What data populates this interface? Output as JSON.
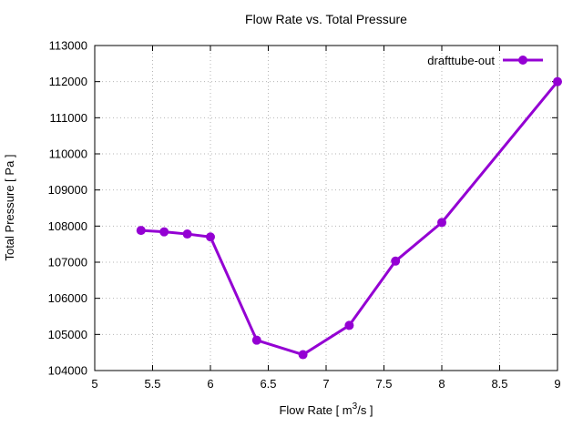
{
  "window": {
    "background": "#ffffff"
  },
  "chart_data": {
    "type": "line",
    "title": "Flow Rate vs. Total Pressure",
    "xlabel": "Flow Rate [ m³/s ]",
    "ylabel": "Total Pressure [ Pa ]",
    "xlim": [
      5,
      9
    ],
    "ylim": [
      104000,
      113000
    ],
    "xticks": [
      5,
      5.5,
      6,
      6.5,
      7,
      7.5,
      8,
      8.5,
      9
    ],
    "yticks": [
      104000,
      105000,
      106000,
      107000,
      108000,
      109000,
      110000,
      111000,
      112000,
      113000
    ],
    "grid": true,
    "legend_position": "top-right-inside",
    "axis_color": "#000000",
    "grid_color": "#b5b5b5",
    "text_color": "#000000",
    "series": [
      {
        "name": "drafttube-out",
        "color": "#9400d3",
        "marker": "circle",
        "x": [
          5.4,
          5.6,
          5.8,
          6.0,
          6.4,
          6.8,
          7.2,
          7.6,
          8.0,
          9.0
        ],
        "y": [
          107880,
          107840,
          107780,
          107700,
          104840,
          104440,
          105250,
          107030,
          108100,
          112000
        ]
      }
    ]
  }
}
